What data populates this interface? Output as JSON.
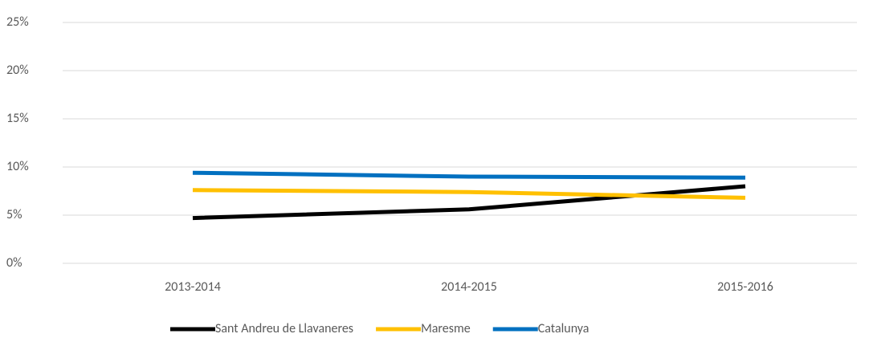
{
  "chart_data": {
    "type": "line",
    "categories": [
      "2013-2014",
      "2014-2015",
      "2015-2016"
    ],
    "series": [
      {
        "name": "Sant Andreu de Llavaneres",
        "color": "#000000",
        "values": [
          4.7,
          5.6,
          8.0
        ]
      },
      {
        "name": "Maresme",
        "color": "#ffc000",
        "values": [
          7.6,
          7.4,
          6.8
        ]
      },
      {
        "name": "Catalunya",
        "color": "#0070c0",
        "values": [
          9.4,
          9.0,
          8.9
        ]
      }
    ],
    "ylim": [
      0,
      25
    ],
    "yticks": [
      {
        "value": 0,
        "label": "0%"
      },
      {
        "value": 5,
        "label": "5%"
      },
      {
        "value": 10,
        "label": "10%"
      },
      {
        "value": 15,
        "label": "15%"
      },
      {
        "value": 20,
        "label": "20%"
      },
      {
        "value": 25,
        "label": "25%"
      }
    ],
    "grid": true,
    "legend": "bottom"
  }
}
